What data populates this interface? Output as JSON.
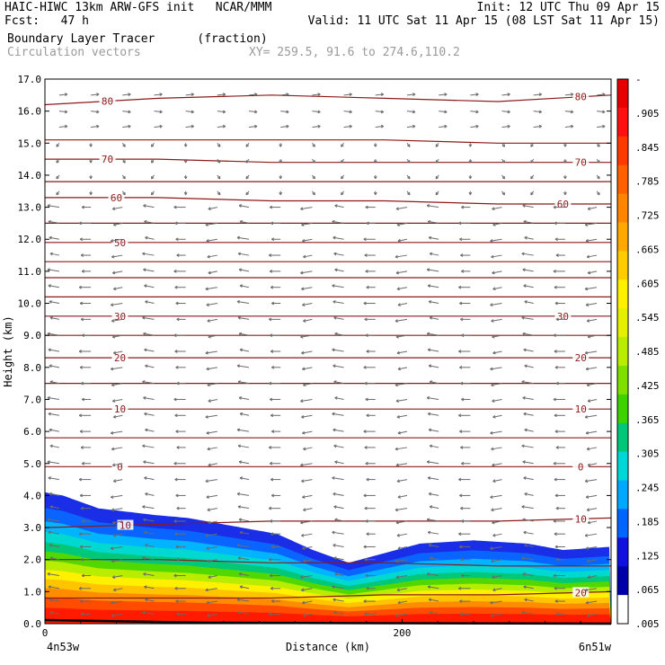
{
  "header": {
    "line1_left": "HAIC-HIWC 13km ARW-GFS init   NCAR/MMM",
    "line2_left": "Fcst:   47 h",
    "line1_right": "Init: 12 UTC Thu 09 Apr 15",
    "line2_right": "Valid: 11 UTC Sat 11 Apr 15 (08 LST Sat 11 Apr 15)",
    "field_name": "Boundary Layer Tracer",
    "field_units": "(fraction)",
    "vector_label": "Circulation vectors",
    "xy_label": "XY= 259.5, 91.6 to 274.6,110.2"
  },
  "chart_data": {
    "type": "heatmap",
    "title": "Boundary Layer Tracer (fraction)",
    "xlabel": "Distance (km)",
    "ylabel": "Height (km)",
    "xlim": [
      0,
      317
    ],
    "ylim": [
      0,
      17
    ],
    "x_tick_values": [
      0,
      200
    ],
    "x_tick_labels": [
      "0",
      "200"
    ],
    "x_end_labels": [
      "4n53w",
      "6n51w"
    ],
    "y_tick_values": [
      0,
      1,
      2,
      3,
      4,
      5,
      6,
      7,
      8,
      9,
      10,
      11,
      12,
      13,
      14,
      15,
      16,
      17
    ],
    "y_tick_labels": [
      "0.0",
      "1.0",
      "2.0",
      "3.0",
      "4.0",
      "5.0",
      "6.0",
      "7.0",
      "8.0",
      "9.0",
      "10.0",
      "11.0",
      "12.0",
      "13.0",
      "14.0",
      "15.0",
      "16.0",
      "17.0"
    ],
    "colorbar": {
      "labels": [
        "-",
        ".905",
        ".845",
        ".785",
        ".725",
        ".665",
        ".605",
        ".545",
        ".485",
        ".425",
        ".365",
        ".305",
        ".245",
        ".185",
        ".125",
        ".065",
        ".005"
      ],
      "colors": [
        "#e80000",
        "#ff1010",
        "#ff3a00",
        "#ff6000",
        "#ff8400",
        "#ffa800",
        "#ffcc00",
        "#fff000",
        "#e4f000",
        "#b8ec00",
        "#7fe000",
        "#3dd200",
        "#00c878",
        "#00d8d8",
        "#00a8ff",
        "#0064ff",
        "#1010e0",
        "#0000a8",
        "#ffffff"
      ]
    },
    "tracer_top_height_km": [
      {
        "x": 0,
        "y": 4.1
      },
      {
        "x": 10,
        "y": 4.0
      },
      {
        "x": 30,
        "y": 3.6
      },
      {
        "x": 60,
        "y": 3.4
      },
      {
        "x": 80,
        "y": 3.3
      },
      {
        "x": 110,
        "y": 3.0
      },
      {
        "x": 130,
        "y": 2.8
      },
      {
        "x": 150,
        "y": 2.3
      },
      {
        "x": 170,
        "y": 1.9
      },
      {
        "x": 190,
        "y": 2.2
      },
      {
        "x": 210,
        "y": 2.5
      },
      {
        "x": 240,
        "y": 2.6
      },
      {
        "x": 270,
        "y": 2.5
      },
      {
        "x": 290,
        "y": 2.3
      },
      {
        "x": 317,
        "y": 2.4
      }
    ],
    "isotherms": [
      {
        "label": "80",
        "heights_km": [
          16.2,
          16.4,
          16.5,
          16.4,
          16.3,
          16.5
        ],
        "label_positions_km": [
          35,
          300
        ]
      },
      {
        "label": "",
        "heights_km": [
          15.1,
          15.1,
          15.1,
          15.1,
          15.0,
          15.0
        ]
      },
      {
        "label": "70",
        "heights_km": [
          14.5,
          14.5,
          14.4,
          14.4,
          14.4,
          14.4
        ],
        "label_positions_km": [
          35,
          300
        ]
      },
      {
        "label": "",
        "heights_km": [
          13.8,
          13.8,
          13.8,
          13.8,
          13.8,
          13.8
        ]
      },
      {
        "label": "60",
        "heights_km": [
          13.3,
          13.3,
          13.2,
          13.2,
          13.1,
          13.1
        ],
        "label_positions_km": [
          40,
          290
        ]
      },
      {
        "label": "",
        "heights_km": [
          12.5,
          12.5,
          12.5,
          12.5,
          12.5,
          12.5
        ]
      },
      {
        "label": "50",
        "heights_km": [
          11.9,
          11.9,
          11.9,
          11.9,
          11.9,
          11.9
        ],
        "label_positions_km": [
          42
        ]
      },
      {
        "label": "",
        "heights_km": [
          11.3,
          11.3,
          11.3,
          11.3,
          11.3,
          11.3
        ]
      },
      {
        "label": "",
        "heights_km": [
          10.8,
          10.8,
          10.8,
          10.8,
          10.8,
          10.8
        ]
      },
      {
        "label": "",
        "heights_km": [
          10.2,
          10.2,
          10.2,
          10.2,
          10.2,
          10.2
        ]
      },
      {
        "label": "30",
        "heights_km": [
          9.6,
          9.6,
          9.6,
          9.6,
          9.6,
          9.6
        ],
        "label_positions_km": [
          42,
          290
        ]
      },
      {
        "label": "",
        "heights_km": [
          9.0,
          9.0,
          9.0,
          9.0,
          9.0,
          9.0
        ]
      },
      {
        "label": "20",
        "heights_km": [
          8.3,
          8.3,
          8.3,
          8.3,
          8.3,
          8.3
        ],
        "label_positions_km": [
          42,
          300
        ]
      },
      {
        "label": "",
        "heights_km": [
          7.5,
          7.5,
          7.5,
          7.5,
          7.5,
          7.5
        ]
      },
      {
        "label": "10",
        "heights_km": [
          6.7,
          6.7,
          6.7,
          6.7,
          6.7,
          6.7
        ],
        "label_positions_km": [
          42,
          300
        ]
      },
      {
        "label": "",
        "heights_km": [
          5.8,
          5.8,
          5.8,
          5.8,
          5.8,
          5.8
        ]
      },
      {
        "label": "0",
        "heights_km": [
          4.9,
          4.9,
          4.9,
          4.9,
          4.9,
          4.9
        ],
        "label_positions_km": [
          42,
          300
        ]
      },
      {
        "label": "10",
        "heights_km": [
          3.0,
          3.1,
          3.2,
          3.2,
          3.2,
          3.3
        ],
        "label_positions_km": [
          45,
          300
        ]
      },
      {
        "label": "",
        "heights_km": [
          2.0,
          2.0,
          1.9,
          1.9,
          1.8,
          1.8
        ]
      },
      {
        "label": "20",
        "heights_km": [
          0.8,
          0.8,
          0.8,
          0.9,
          0.9,
          1.0
        ],
        "label_positions_km": [
          300
        ]
      }
    ],
    "vector_rows_km": [
      0.3,
      0.7,
      1.1,
      1.5,
      2.0,
      2.4,
      2.8,
      3.2,
      3.6,
      4.0,
      4.5,
      5.0,
      5.5,
      6.0,
      6.5,
      7.0,
      7.5,
      8.0,
      8.5,
      9.0,
      9.5,
      10.0,
      10.5,
      11.0,
      11.5,
      12.0,
      12.5,
      13.0,
      13.5,
      14.0,
      14.5,
      15.0,
      15.5,
      16.0,
      16.5
    ]
  }
}
